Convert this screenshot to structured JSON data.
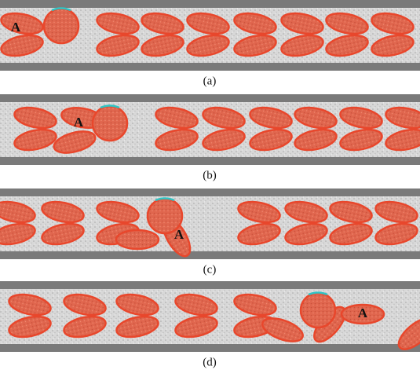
{
  "panels": [
    {
      "marker": "A",
      "caption": "(a)"
    },
    {
      "marker": "A",
      "caption": "(b)"
    },
    {
      "marker": "A",
      "caption": "(c)"
    },
    {
      "marker": "A",
      "caption": "(d)"
    }
  ]
}
